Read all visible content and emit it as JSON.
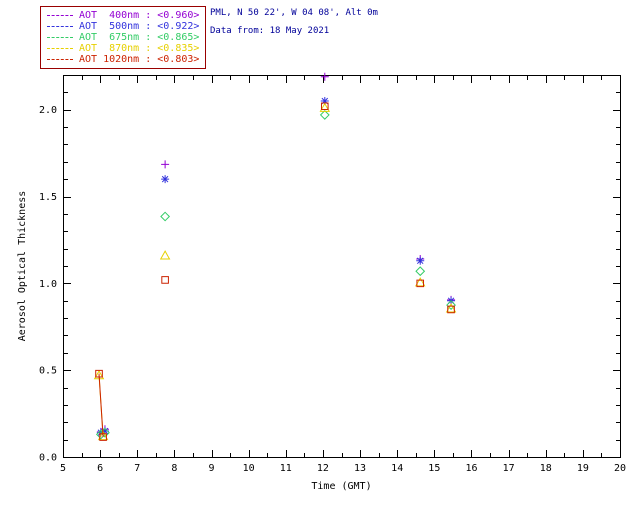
{
  "header": {
    "station_line": "PML, N 50 22', W 04 08', Alt 0m",
    "date_line": "Data from: 18 May 2021",
    "text_color": "#000099"
  },
  "chart_data": {
    "type": "scatter",
    "title": "",
    "xlabel": "Time (GMT)",
    "ylabel": "Aerosol Optical Thickness",
    "xlim": [
      5,
      20
    ],
    "ylim": [
      0,
      2.2
    ],
    "xticks": [
      5,
      6,
      7,
      8,
      9,
      10,
      11,
      12,
      13,
      14,
      15,
      16,
      17,
      18,
      19,
      20
    ],
    "x_minor_step": 0.5,
    "yticks": [
      0,
      0.5,
      1,
      1.5,
      2
    ],
    "ytick_labels": [
      "0.0",
      "0.5",
      "1.0",
      "1.5",
      "2.0"
    ],
    "y_minor_step": 0.1,
    "grid": false,
    "axis_color": "#000000",
    "legend": {
      "position": "top-left",
      "border_color": "#990000"
    },
    "series": [
      {
        "id": "aot-400",
        "legend_label": "AOT  400nm",
        "mean": "<0.960>",
        "color": "#9400d3",
        "marker": "plus",
        "points": [
          [
            6.02,
            0.145
          ],
          [
            6.13,
            0.16
          ],
          [
            7.75,
            1.685
          ],
          [
            12.05,
            2.19
          ],
          [
            14.62,
            1.14
          ],
          [
            15.45,
            0.905
          ]
        ],
        "line": [
          [
            6.02,
            0.145
          ],
          [
            6.13,
            0.16
          ]
        ]
      },
      {
        "id": "aot-500",
        "legend_label": "AOT  500nm",
        "mean": "<0.922>",
        "color": "#3333dd",
        "marker": "asterisk",
        "points": [
          [
            6.02,
            0.14
          ],
          [
            6.13,
            0.15
          ],
          [
            7.75,
            1.6
          ],
          [
            12.05,
            2.05
          ],
          [
            14.62,
            1.13
          ],
          [
            15.45,
            0.9
          ]
        ],
        "line": [
          [
            6.02,
            0.14
          ],
          [
            6.13,
            0.15
          ]
        ]
      },
      {
        "id": "aot-675",
        "legend_label": "AOT  675nm",
        "mean": "<0.865>",
        "color": "#33cc66",
        "marker": "diamond",
        "points": [
          [
            6.02,
            0.13
          ],
          [
            6.13,
            0.14
          ],
          [
            7.75,
            1.385
          ],
          [
            12.05,
            1.97
          ],
          [
            14.62,
            1.07
          ],
          [
            15.45,
            0.875
          ]
        ],
        "line": [
          [
            6.02,
            0.13
          ],
          [
            6.13,
            0.14
          ]
        ]
      },
      {
        "id": "aot-870",
        "legend_label": "AOT  870nm",
        "mean": "<0.835>",
        "color": "#e6d000",
        "marker": "triangle",
        "points": [
          [
            5.97,
            0.47
          ],
          [
            6.08,
            0.12
          ],
          [
            7.75,
            1.16
          ],
          [
            12.05,
            2.01
          ],
          [
            14.62,
            1.005
          ],
          [
            15.45,
            0.855
          ]
        ],
        "line": [
          [
            5.97,
            0.47
          ],
          [
            6.08,
            0.12
          ]
        ]
      },
      {
        "id": "aot-1020",
        "legend_label": "AOT 1020nm",
        "mean": "<0.803>",
        "color": "#cc2200",
        "marker": "square",
        "points": [
          [
            5.97,
            0.48
          ],
          [
            6.08,
            0.115
          ],
          [
            7.75,
            1.02
          ],
          [
            12.05,
            2.02
          ],
          [
            14.62,
            1.0
          ],
          [
            15.45,
            0.85
          ]
        ],
        "line": [
          [
            5.97,
            0.48
          ],
          [
            6.08,
            0.115
          ]
        ]
      }
    ]
  }
}
